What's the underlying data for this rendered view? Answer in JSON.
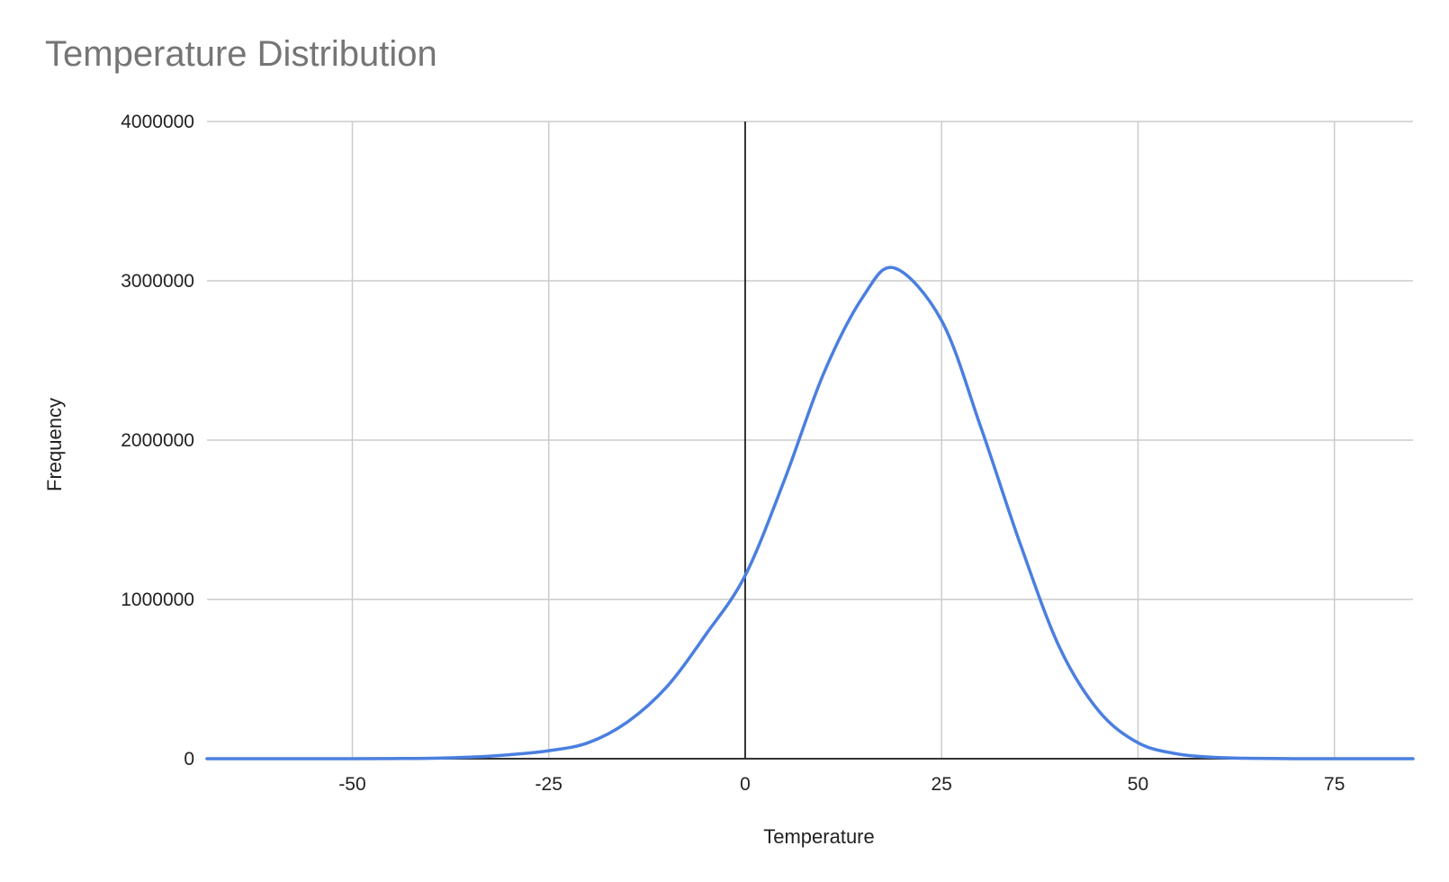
{
  "chart_data": {
    "type": "line",
    "title": "Temperature Distribution",
    "xlabel": "Temperature",
    "ylabel": "Frequency",
    "xlim": [
      -68.5,
      85
    ],
    "ylim": [
      0,
      4000000
    ],
    "x_ticks": [
      -50,
      -25,
      0,
      25,
      50,
      75
    ],
    "x_tick_labels": [
      "-50",
      "-25",
      "0",
      "25",
      "50",
      "75"
    ],
    "y_ticks": [
      0,
      1000000,
      2000000,
      3000000,
      4000000
    ],
    "y_tick_labels": [
      "0",
      "1000000",
      "2000000",
      "3000000",
      "4000000"
    ],
    "grid": true,
    "legend": "none",
    "series": [
      {
        "color": "#4a7fe0",
        "x": [
          -68.5,
          -60,
          -50,
          -45,
          -40,
          -35,
          -30,
          -25,
          -20,
          -15,
          -10,
          -5,
          0,
          5,
          10,
          15,
          19,
          25,
          30,
          35,
          40,
          45,
          50,
          55,
          60,
          65,
          70,
          75,
          80,
          85
        ],
        "y": [
          0,
          0,
          0,
          1000,
          3000,
          10000,
          25000,
          50000,
          100000,
          230000,
          450000,
          780000,
          1150000,
          1750000,
          2420000,
          2900000,
          3080000,
          2750000,
          2080000,
          1350000,
          700000,
          300000,
          100000,
          30000,
          8000,
          2000,
          0,
          0,
          0,
          0
        ]
      }
    ]
  }
}
